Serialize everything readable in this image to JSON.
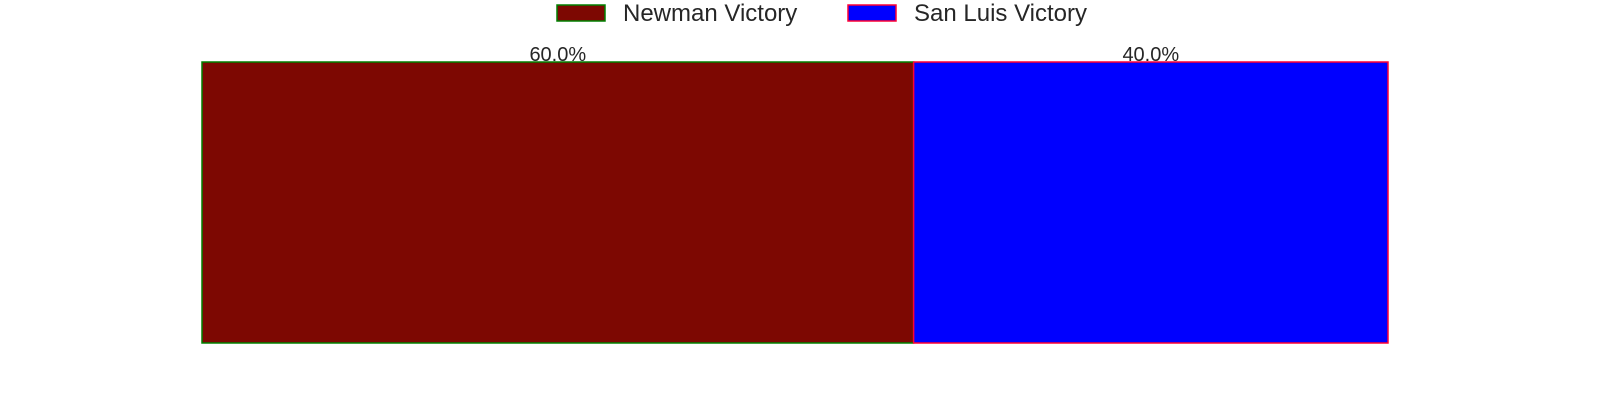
{
  "chart_data": {
    "type": "bar",
    "orientation": "horizontal",
    "stacked": true,
    "normalized": true,
    "unit": "%",
    "xlim": [
      0,
      100
    ],
    "grid": false,
    "axes_visible": false,
    "legend_placement": "top-center",
    "series": [
      {
        "name": "Newman Victory",
        "value": 60.0,
        "label": "60.0%",
        "fill_color": "#7d0802",
        "edge_color": "#008000"
      },
      {
        "name": "San Luis Victory",
        "value": 40.0,
        "label": "40.0%",
        "fill_color": "#0000ff",
        "edge_color": "#ff0033"
      }
    ]
  }
}
